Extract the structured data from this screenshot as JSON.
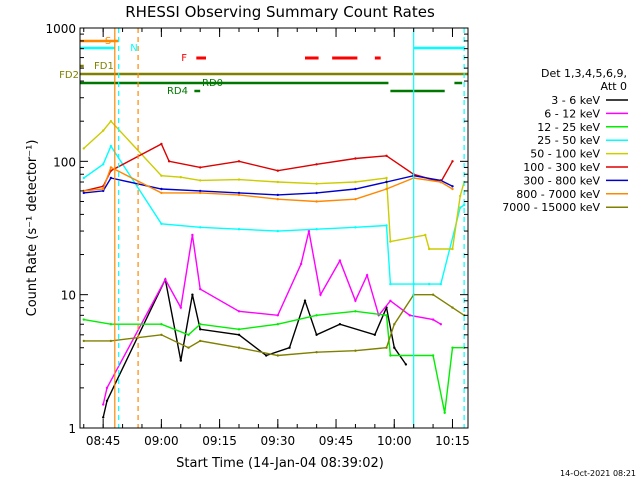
{
  "chart_data": {
    "type": "line",
    "title": "RHESSI Observing Summary Count Rates",
    "xlabel": "Start Time (14-Jan-04 08:39:02)",
    "ylabel": "Count Rate (s⁻¹ detector⁻¹)",
    "yscale": "log",
    "ylim": [
      1,
      1000
    ],
    "xlim": [
      "08:39:02",
      "10:19:00"
    ],
    "x_ticks": [
      "08:45",
      "09:00",
      "09:15",
      "09:30",
      "09:45",
      "10:00",
      "10:15"
    ],
    "y_ticks": [
      {
        "value": 1,
        "label": "1"
      },
      {
        "value": 10,
        "label": "10"
      },
      {
        "value": 100,
        "label": "100"
      },
      {
        "value": 1000,
        "label": "1000"
      }
    ],
    "legend": {
      "placement": "right",
      "header": [
        "Det 1,3,4,5,6,9,",
        "Att 0"
      ],
      "entries": [
        {
          "label": "3 - 6 keV",
          "color": "#000000"
        },
        {
          "label": "6 - 12 keV",
          "color": "#ff00ff"
        },
        {
          "label": "12 - 25 keV",
          "color": "#00ee00"
        },
        {
          "label": "25 - 50 keV",
          "color": "#00ffff"
        },
        {
          "label": "50 - 100 keV",
          "color": "#cccc00"
        },
        {
          "label": "100 - 300 keV",
          "color": "#dd0000"
        },
        {
          "label": "300 - 800 keV",
          "color": "#0000cc"
        },
        {
          "label": "800 - 7000 keV",
          "color": "#ff8800"
        },
        {
          "label": "7000 - 15000 keV",
          "color": "#808000"
        }
      ]
    },
    "flags": [
      {
        "label": "S",
        "color": "#ff8800",
        "segments": [
          [
            "08:39:02",
            "08:49:00"
          ]
        ]
      },
      {
        "label": "N",
        "color": "#00ffff",
        "segments": [
          [
            "08:39:02",
            "08:48:00"
          ],
          [
            "10:05:00",
            "10:18:00"
          ]
        ]
      },
      {
        "label": "F",
        "color": "#ff0000",
        "segments": [
          [
            "09:09:00",
            "09:11:30"
          ],
          [
            "09:37:00",
            "09:40:30"
          ],
          [
            "09:44:00",
            "09:50:30"
          ],
          [
            "09:55:00",
            "09:56:30"
          ]
        ]
      },
      {
        "label": "FD1",
        "color": "#808000",
        "segments": [
          [
            "08:39:02",
            "08:40:00"
          ]
        ]
      },
      {
        "label": "FD2",
        "color": "#808000",
        "segments": [
          [
            "08:39:02",
            "10:19:00"
          ]
        ]
      },
      {
        "label": "RD0",
        "color": "#007700",
        "segments": [
          [
            "08:39:02",
            "09:58:30"
          ],
          [
            "10:15:30",
            "10:17:30"
          ]
        ]
      },
      {
        "label": "RD4",
        "color": "#007700",
        "segments": [
          [
            "09:08:30",
            "09:10:00"
          ],
          [
            "09:59:00",
            "10:13:00"
          ]
        ]
      }
    ],
    "vertical_lines": [
      {
        "time": "08:48:00",
        "color": "#ff8800",
        "style": "solid"
      },
      {
        "time": "08:49:00",
        "color": "#00ffff",
        "style": "dashed"
      },
      {
        "time": "08:54:00",
        "color": "#ff8800",
        "style": "dashed"
      },
      {
        "time": "10:05:00",
        "color": "#00ffff",
        "style": "solid"
      },
      {
        "time": "10:18:00",
        "color": "#00ffff",
        "style": "dashed"
      }
    ],
    "series": [
      {
        "name": "3 - 6 keV",
        "color": "#000000",
        "points": [
          [
            "08:45",
            1.2
          ],
          [
            "08:46",
            1.6
          ],
          [
            "09:01",
            13
          ],
          [
            "09:05",
            3.2
          ],
          [
            "09:08",
            10
          ],
          [
            "09:10",
            5.5
          ],
          [
            "09:20",
            5
          ],
          [
            "09:27",
            3.5
          ],
          [
            "09:33",
            4
          ],
          [
            "09:37",
            9
          ],
          [
            "09:40",
            5
          ],
          [
            "09:46",
            6
          ],
          [
            "09:55",
            5
          ],
          [
            "09:58",
            8
          ],
          [
            "10:00",
            4
          ],
          [
            "10:03",
            3
          ]
        ]
      },
      {
        "name": "6 - 12 keV",
        "color": "#ff00ff",
        "points": [
          [
            "08:45",
            1.5
          ],
          [
            "08:46",
            2
          ],
          [
            "09:01",
            13
          ],
          [
            "09:05",
            8
          ],
          [
            "09:08",
            28
          ],
          [
            "09:10",
            11
          ],
          [
            "09:20",
            7.5
          ],
          [
            "09:30",
            7
          ],
          [
            "09:36",
            17
          ],
          [
            "09:38",
            30
          ],
          [
            "09:41",
            10
          ],
          [
            "09:46",
            18
          ],
          [
            "09:50",
            9
          ],
          [
            "09:53",
            14
          ],
          [
            "09:56",
            7
          ],
          [
            "09:59",
            9
          ],
          [
            "10:04",
            7
          ],
          [
            "10:10",
            6.5
          ],
          [
            "10:12",
            6
          ]
        ]
      },
      {
        "name": "12 - 25 keV",
        "color": "#00ee00",
        "points": [
          [
            "08:40",
            6.5
          ],
          [
            "08:47",
            6
          ],
          [
            "09:00",
            6
          ],
          [
            "09:07",
            5
          ],
          [
            "09:10",
            6
          ],
          [
            "09:20",
            5.5
          ],
          [
            "09:30",
            6
          ],
          [
            "09:40",
            7
          ],
          [
            "09:50",
            7.5
          ],
          [
            "09:58",
            7
          ],
          [
            "09:59",
            3.5
          ],
          [
            "10:10",
            3.5
          ],
          [
            "10:13",
            1.3
          ],
          [
            "10:15",
            4
          ],
          [
            "10:18",
            4
          ]
        ]
      },
      {
        "name": "25 - 50 keV",
        "color": "#00ffff",
        "points": [
          [
            "08:40",
            75
          ],
          [
            "08:45",
            95
          ],
          [
            "08:47",
            130
          ],
          [
            "09:00",
            34
          ],
          [
            "09:10",
            32
          ],
          [
            "09:20",
            31
          ],
          [
            "09:30",
            30
          ],
          [
            "09:40",
            31
          ],
          [
            "09:50",
            32
          ],
          [
            "09:58",
            33
          ],
          [
            "09:59",
            12
          ],
          [
            "10:05",
            12
          ],
          [
            "10:09",
            12
          ],
          [
            "10:12",
            12
          ],
          [
            "10:17",
            45
          ],
          [
            "10:18",
            47
          ]
        ]
      },
      {
        "name": "50 - 100 keV",
        "color": "#cccc00",
        "points": [
          [
            "08:40",
            125
          ],
          [
            "08:45",
            170
          ],
          [
            "08:47",
            200
          ],
          [
            "09:00",
            78
          ],
          [
            "09:05",
            76
          ],
          [
            "09:10",
            72
          ],
          [
            "09:20",
            73
          ],
          [
            "09:30",
            70
          ],
          [
            "09:40",
            68
          ],
          [
            "09:50",
            70
          ],
          [
            "09:58",
            75
          ],
          [
            "09:59",
            25
          ],
          [
            "10:05",
            27
          ],
          [
            "10:08",
            28
          ],
          [
            "10:09",
            22
          ],
          [
            "10:15",
            22
          ],
          [
            "10:17",
            55
          ],
          [
            "10:18",
            70
          ]
        ]
      },
      {
        "name": "100 - 300 keV",
        "color": "#dd0000",
        "points": [
          [
            "08:40",
            60
          ],
          [
            "08:45",
            65
          ],
          [
            "08:47",
            85
          ],
          [
            "09:00",
            135
          ],
          [
            "09:02",
            100
          ],
          [
            "09:10",
            90
          ],
          [
            "09:20",
            100
          ],
          [
            "09:30",
            85
          ],
          [
            "09:40",
            95
          ],
          [
            "09:50",
            105
          ],
          [
            "09:58",
            110
          ],
          [
            "10:05",
            80
          ],
          [
            "10:12",
            70
          ],
          [
            "10:15",
            100
          ]
        ]
      },
      {
        "name": "300 - 800 keV",
        "color": "#0000cc",
        "points": [
          [
            "08:40",
            58
          ],
          [
            "08:45",
            60
          ],
          [
            "08:47",
            75
          ],
          [
            "09:00",
            62
          ],
          [
            "09:10",
            60
          ],
          [
            "09:20",
            58
          ],
          [
            "09:30",
            56
          ],
          [
            "09:40",
            58
          ],
          [
            "09:50",
            62
          ],
          [
            "09:58",
            70
          ],
          [
            "10:05",
            78
          ],
          [
            "10:12",
            72
          ],
          [
            "10:15",
            65
          ]
        ]
      },
      {
        "name": "800 - 7000 keV",
        "color": "#ff8800",
        "points": [
          [
            "08:40",
            60
          ],
          [
            "08:45",
            62
          ],
          [
            "08:47",
            90
          ],
          [
            "09:00",
            58
          ],
          [
            "09:10",
            58
          ],
          [
            "09:20",
            56
          ],
          [
            "09:30",
            52
          ],
          [
            "09:40",
            50
          ],
          [
            "09:50",
            52
          ],
          [
            "09:58",
            62
          ],
          [
            "10:05",
            75
          ],
          [
            "10:12",
            70
          ],
          [
            "10:15",
            62
          ]
        ]
      },
      {
        "name": "7000 - 15000 keV",
        "color": "#808000",
        "points": [
          [
            "08:40",
            4.5
          ],
          [
            "08:47",
            4.5
          ],
          [
            "09:00",
            5
          ],
          [
            "09:07",
            4
          ],
          [
            "09:10",
            4.5
          ],
          [
            "09:20",
            4
          ],
          [
            "09:30",
            3.5
          ],
          [
            "09:40",
            3.7
          ],
          [
            "09:50",
            3.8
          ],
          [
            "09:58",
            4
          ],
          [
            "10:00",
            6
          ],
          [
            "10:05",
            10
          ],
          [
            "10:10",
            10
          ],
          [
            "10:15",
            8
          ],
          [
            "10:18",
            7
          ]
        ]
      }
    ],
    "footer_date": "14-Oct-2021 08:21"
  }
}
